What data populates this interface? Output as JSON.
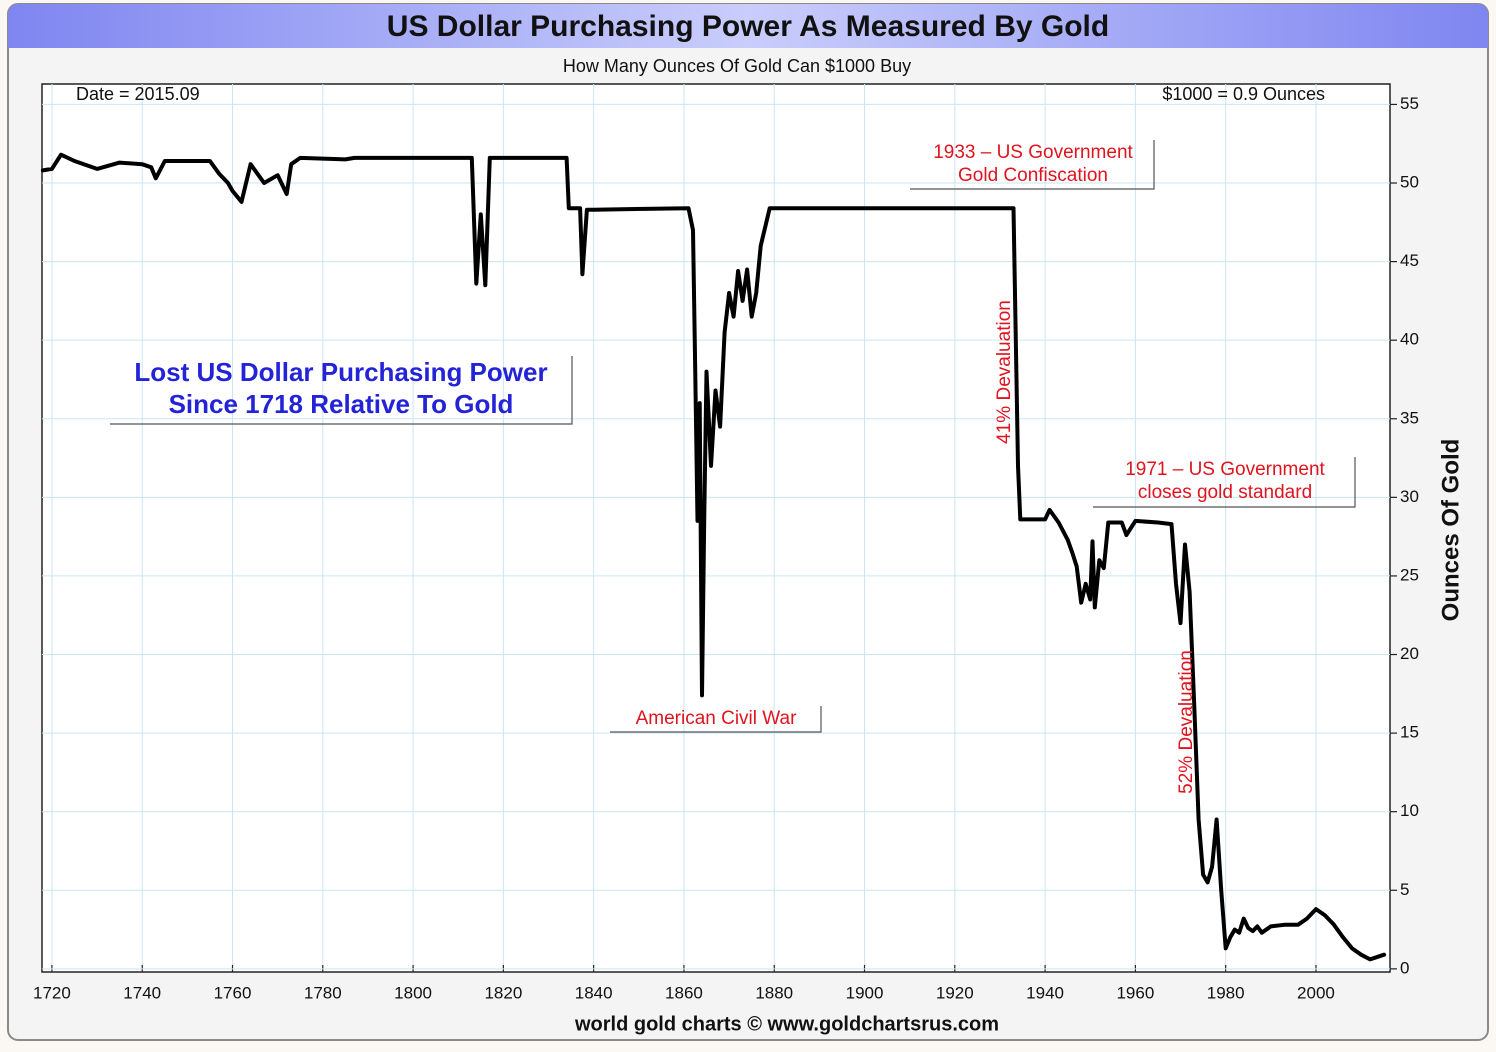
{
  "chart_data": {
    "type": "line",
    "title": "US Dollar Purchasing Power As Measured By Gold",
    "subtitle": "How Many Ounces Of Gold Can $1000 Buy",
    "date_label": "Date = 2015.09",
    "latest_label": "$1000 = 0.9 Ounces",
    "y_label": "Ounces Of Gold",
    "source": "world gold charts © www.goldchartsrus.com",
    "annotations": {
      "headline": [
        "Lost US Dollar Purchasing Power",
        "Since 1718 Relative To Gold"
      ],
      "confiscation": [
        "1933 – US Government",
        "Gold Confiscation"
      ],
      "gold_standard": [
        "1971 – US Government",
        "closes gold standard"
      ],
      "civil_war": "American Civil War",
      "devaluation_41": "41% Devaluation",
      "devaluation_52": "52% Devaluation"
    },
    "color": "#000000",
    "grid": true,
    "y_axis_side": "right",
    "xlim": [
      1717.8,
      2016.4
    ],
    "ylim": [
      -0.2,
      56.3
    ],
    "xticks": [
      1720,
      1740,
      1760,
      1780,
      1800,
      1820,
      1840,
      1860,
      1880,
      1900,
      1920,
      1940,
      1960,
      1980,
      2000
    ],
    "yticks": [
      0,
      5,
      10,
      15,
      20,
      25,
      30,
      35,
      40,
      45,
      50,
      55
    ],
    "x": [
      1718,
      1720,
      1722,
      1725,
      1730,
      1735,
      1740,
      1742,
      1743,
      1745,
      1750,
      1755,
      1757,
      1759,
      1760,
      1762,
      1764,
      1767,
      1770,
      1772,
      1773,
      1775,
      1785,
      1787,
      1790,
      1800,
      1813,
      1814,
      1815,
      1816,
      1817,
      1820,
      1834,
      1834.5,
      1837,
      1837.5,
      1838.5,
      1840,
      1861,
      1862,
      1862.5,
      1863,
      1863.5,
      1864,
      1864.5,
      1865,
      1866,
      1867,
      1868,
      1869,
      1870,
      1871,
      1872,
      1873,
      1874,
      1875,
      1876,
      1877,
      1879,
      1900,
      1933,
      1934,
      1934.5,
      1940,
      1941,
      1943,
      1945,
      1946,
      1947,
      1948,
      1949,
      1950,
      1950.5,
      1951,
      1952,
      1953,
      1954,
      1957,
      1958,
      1960,
      1965,
      1968,
      1969,
      1970,
      1971,
      1972,
      1973,
      1974,
      1975,
      1976,
      1977,
      1978,
      1979,
      1980,
      1981,
      1982,
      1983,
      1984,
      1985,
      1986,
      1987,
      1988,
      1990,
      1993,
      1996,
      1998,
      2000,
      2002,
      2004,
      2006,
      2008,
      2010,
      2012,
      2014,
      2015.09
    ],
    "values": [
      50.8,
      50.9,
      51.8,
      51.4,
      50.9,
      51.3,
      51.2,
      51.0,
      50.3,
      51.4,
      51.4,
      51.4,
      50.6,
      50.0,
      49.5,
      48.8,
      51.2,
      50.0,
      50.5,
      49.3,
      51.2,
      51.6,
      51.5,
      51.6,
      51.6,
      51.6,
      51.6,
      43.6,
      48.0,
      43.5,
      51.6,
      51.6,
      51.6,
      48.4,
      48.4,
      44.2,
      48.3,
      48.3,
      48.4,
      47.0,
      38.2,
      28.5,
      36.0,
      17.4,
      29.0,
      38.0,
      32.0,
      36.8,
      34.5,
      40.5,
      43.0,
      41.5,
      44.4,
      42.5,
      44.5,
      41.5,
      43.0,
      46.0,
      48.4,
      48.4,
      48.4,
      32.0,
      28.6,
      28.6,
      29.2,
      28.4,
      27.3,
      26.5,
      25.6,
      23.3,
      24.5,
      23.5,
      27.2,
      23.0,
      26.0,
      25.5,
      28.4,
      28.4,
      27.6,
      28.5,
      28.4,
      28.3,
      24.5,
      22.0,
      27.0,
      24.0,
      17.0,
      9.5,
      6.0,
      5.5,
      6.5,
      9.5,
      5.0,
      1.3,
      2.0,
      2.5,
      2.3,
      3.2,
      2.6,
      2.4,
      2.7,
      2.3,
      2.7,
      2.8,
      2.8,
      3.2,
      3.8,
      3.4,
      2.8,
      2.0,
      1.3,
      0.9,
      0.6,
      0.8,
      0.9
    ]
  }
}
